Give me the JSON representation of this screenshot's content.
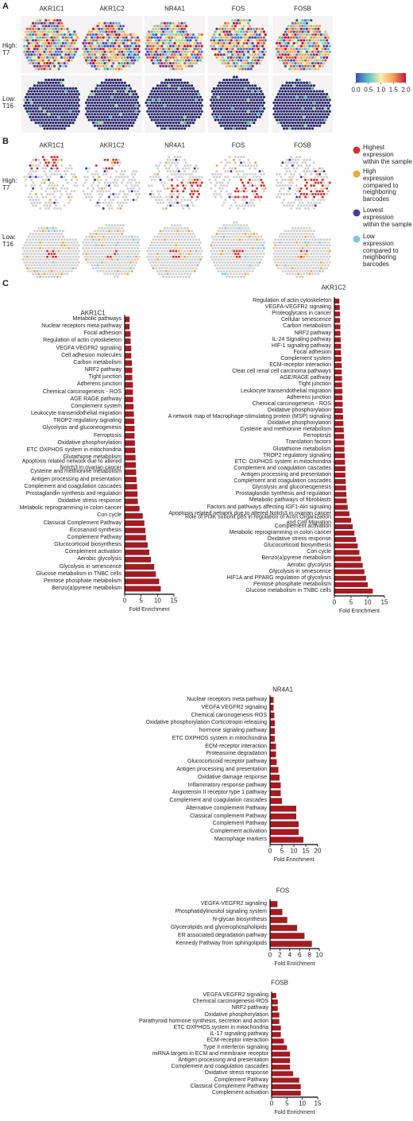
{
  "panel_a": {
    "label": "A",
    "genes": [
      "AKR1C1",
      "AKR1C2",
      "NR4A1",
      "FOS",
      "FOSB"
    ],
    "rows": [
      "High:\nT7",
      "Low:\nT16"
    ],
    "colorbar": {
      "lim": [
        0,
        2
      ],
      "ticks": [
        {
          "value": 0,
          "label": "0.0"
        },
        0.5,
        {
          "value": 1,
          "label": "1.0"
        },
        1.5,
        {
          "value": 2,
          "label": "2.0"
        }
      ],
      "colors": [
        "#3b4cc0",
        "#5fc0c8",
        "#f7f1a8",
        "#f5a05a",
        "#c0143c"
      ]
    }
  },
  "panel_b": {
    "label": "B",
    "genes": [
      "AKR1C1",
      "AKR1C2",
      "NR4A1",
      "FOS",
      "FOSB"
    ],
    "rows": [
      "High:\nT7",
      "Low:\nT16"
    ],
    "legend": [
      {
        "label": "Highest\nexpression\nwithin the sample",
        "color": "#d9302a"
      },
      {
        "label": "High\nexpression\ncompared to\nneighboring\nbarcodes",
        "color": "#f0a830"
      },
      {
        "label": "Lowest\nexpression\nwithin the sample",
        "color": "#3a3fa0"
      },
      {
        "label": "Low\nexpression\ncompared to\nneighboring\nbarcodes",
        "color": "#7ec8e0"
      }
    ]
  },
  "panel_c": {
    "label": "C"
  },
  "chart_data": [
    {
      "type": "bar",
      "orientation": "horizontal",
      "title": "AKR1C1",
      "color": "#a31b22",
      "xlim": [
        0,
        15
      ],
      "xticks": [
        0,
        5,
        10,
        15
      ],
      "xlabel": "Fold Enrichment",
      "categories": [
        "Metabolic pathways",
        "Nuclear receptors meta pathway",
        "Focal adhesion",
        "Regulation of actin cytoskeleton",
        "VEGFA VEGFR2 signaling",
        "Cell adhesion molecules",
        "Carbon metabolism",
        "NRF2 pathway",
        "Tight junction",
        "Adherens junction",
        "Chemical carcinogenesis - ROS",
        "AGE RAGE pathway",
        "Complement system",
        "Leukocyte transendothelial migration",
        "TROP2 regulatory signaling",
        "Glycolysis and gluconeogenesis",
        "Ferroptosis",
        "Oxidative phosphorylation",
        "ETC OXPHOS system in mitochondria",
        "Glutathione metabolism",
        "Apoptosis related network due to altered\nNotch3 in ovarian cancer",
        "Cysteine and methionine metabolism",
        "Antigen processing and presentation",
        "Complement and coagulation cascades",
        "Prostaglandin synthesis and regulation",
        "Oxidative stress response",
        "Metabolic reprogramming in colon cancer",
        "Cori cycle",
        "Classical Complement Pathway",
        "Eicosanoid synthesis",
        "Complement Pathway",
        "Glucocorticoid biosynthesis",
        "Complement activation",
        "Aerobic glycolysis",
        "Glycolysis in senescence",
        "Glucose metabolism in TNBC cells",
        "Pentose phosphate metabolism",
        "Benzo(a)pyrene metabolism"
      ],
      "values": [
        1.5,
        1.5,
        1.8,
        1.8,
        2,
        2,
        2.2,
        2.3,
        2.3,
        2.5,
        2.5,
        2.6,
        2.7,
        2.8,
        2.9,
        3,
        3,
        3.1,
        3.2,
        3.3,
        3.4,
        3.5,
        3.6,
        3.8,
        3.9,
        4,
        4.5,
        5.5,
        6,
        6.3,
        6.5,
        7,
        7.5,
        8,
        9,
        9.5,
        10.5,
        11
      ]
    },
    {
      "type": "bar",
      "orientation": "horizontal",
      "title": "AKR1C2",
      "color": "#a31b22",
      "xlim": [
        0,
        15
      ],
      "xticks": [
        0,
        5,
        10,
        15
      ],
      "xlabel": "Fold Enrichment",
      "categories": [
        "Regulation of actin cytoskeleton",
        "VEGFA-VEGFR2 signaling",
        "Proteoglycans in cancer",
        "Cellular senescence",
        "Carbon metabolism",
        "NRF2 pathway",
        "IL-24 Signaling pathway",
        "HIF-1 signaling pathway",
        "Focal adhesion",
        "Complement system",
        "ECM-receptor interaction",
        "Clear cell renal cell carcinoma pathways",
        "AGE/RAGE pathway",
        "Tight junction",
        "Leukocyte transendothelial migration",
        "Adherens junction",
        "Chemical carcinogenesis - ROS",
        "Oxidative phosphorylation",
        "A network map of Macrophage-stimulating protein (MSP) signaling",
        "Oxidative phosphorylation",
        "Cysteine and methionine metabolism",
        "Ferroptosis",
        "Translation factors",
        "Glutathione metabolism",
        "TROP2 regulatory signaling",
        "ETC: OXPHOS system in mitochondria",
        "Complement and coagulation cascades",
        "Antigen processing and presentation",
        "Complement and coagulation cascades",
        "Glycolysis and gluconeogenesis",
        "Prostaglandin synthesis and regulation",
        "Metabolic pathways of fibroblasts",
        "Factors and pathways affecting IGF1-Akt signaling",
        "Apoptosis related network due to altered Notch3 in ovarian cancer",
        "Role of PI3K subunit p85 in regulation of Actin Organization\nand Cell Migration",
        "Complement activation",
        "Metabolic reprogramming in colon cancer",
        "Oxidative stress response",
        "Glucocorticoid biosynthesis",
        "Cori cycle",
        "Benzo(a)pyrene metabolism",
        "Aerobic glycolysis",
        "Glycolysis in senescence",
        "HIF1A and PPARG regulation of glycolysis",
        "Pentose phosphate metabolism",
        "Glucose metabolism in TNBC cells"
      ],
      "values": [
        1.5,
        1.6,
        1.7,
        1.7,
        1.8,
        1.8,
        1.9,
        2,
        2,
        2.1,
        2.2,
        2.2,
        2.3,
        2.3,
        2.4,
        2.4,
        2.5,
        2.5,
        2.6,
        2.7,
        2.8,
        2.9,
        3,
        3,
        3.1,
        3.2,
        3.3,
        3.3,
        3.4,
        3.5,
        3.6,
        3.7,
        4,
        4.5,
        5,
        5.5,
        6,
        6.5,
        7,
        7.5,
        8,
        8.5,
        9,
        9.5,
        10,
        11.5
      ]
    },
    {
      "type": "bar",
      "orientation": "horizontal",
      "title": "NR4A1",
      "color": "#a31b22",
      "xlim": [
        0,
        20
      ],
      "xticks": [
        0,
        5,
        10,
        15,
        20
      ],
      "xlabel": "Fold Enrichment",
      "categories": [
        "Nuclear receptors meta pathway",
        "VEGFA VEGFR2 signaling",
        "Chemical carcinogenesis-ROS",
        "Oxidative phosphorylation Corticotropin releasing",
        "hormone signaling pathway",
        "ETC OXPHOS system in mitochondria",
        "ECM-receptor interaction",
        "Proteasome degradation",
        "Glucocorticoid receptor pathway",
        "Antigen processing and presentation",
        "Oxidative damage response",
        "Inflammatory response pathway",
        "Angiotensin II receptor type 1 pathway",
        "Complement and coagulation cascades",
        "Alternative complement Pathway",
        "Classical complement Pathway",
        "Complement Pathway",
        "Complement activation",
        "Macrophage markers"
      ],
      "values": [
        1.5,
        1.5,
        1.8,
        2,
        2,
        2,
        2.5,
        2.5,
        2.8,
        3.5,
        4,
        4.5,
        4.5,
        5,
        11,
        11,
        12,
        12,
        14
      ]
    },
    {
      "type": "bar",
      "orientation": "horizontal",
      "title": "FOS",
      "color": "#a31b22",
      "xlim": [
        0,
        10
      ],
      "xticks": [
        0,
        2,
        4,
        6,
        8,
        10
      ],
      "xlabel": "Fold Enrichment",
      "categories": [
        "VEGFA-VEGFR2 signaling",
        "Phosphatidylinositol signaling system",
        "N-glycan biosynthesis",
        "Glycerolipids and glycerophospholipids",
        "ER associated degradation pathway",
        "Kennedy Pathway from sphingolipids"
      ],
      "values": [
        1.5,
        2.5,
        3.5,
        5.5,
        7,
        8.5
      ]
    },
    {
      "type": "bar",
      "orientation": "horizontal",
      "title": "FOSB",
      "color": "#a31b22",
      "xlim": [
        0,
        15
      ],
      "xticks": [
        0,
        5,
        10,
        15
      ],
      "xlabel": "Fold Enrichment",
      "categories": [
        "VEGFA VEGFR2 signaling",
        "Chemical carcinogenesis-ROS",
        "NRF2 pathway",
        "Oxidative phosphorylation",
        "Parathyroid hormone synthesis, secretion and action",
        "ETC OXPHOS system in mitochondria",
        "IL-17 signaling pathway",
        "ECM-receptor interaction",
        "Type II interferon signaling",
        "miRNA targets in ECM and membrane receptor",
        "Antigen processing and presentation",
        "Complement and coagulation cascades",
        "Oxidative stress response",
        "Complement Pathway",
        "Classical Complement Pathway",
        "Complement activation"
      ],
      "values": [
        1.5,
        2,
        2,
        2.5,
        2.5,
        3,
        3,
        4,
        5,
        6,
        6,
        6,
        7,
        9,
        9.5,
        9.5
      ]
    }
  ]
}
